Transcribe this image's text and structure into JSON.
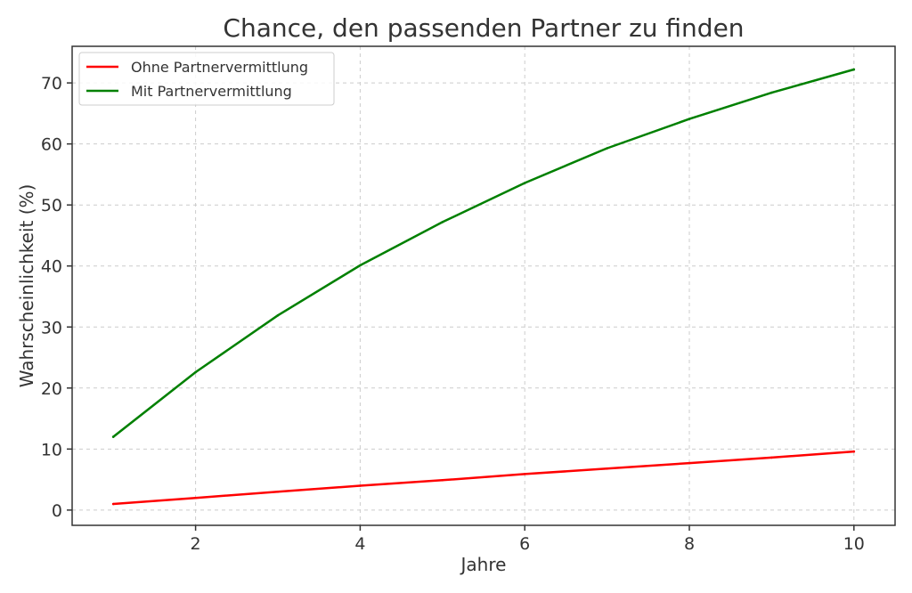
{
  "chart_data": {
    "type": "line",
    "title": "Chance, den passenden Partner zu finden",
    "xlabel": "Jahre",
    "ylabel": "Wahrscheinlichkeit (%)",
    "xlim": [
      0.5,
      10.5
    ],
    "ylim": [
      -2.5,
      76
    ],
    "x_ticks": [
      2,
      4,
      6,
      8,
      10
    ],
    "y_ticks": [
      0,
      10,
      20,
      30,
      40,
      50,
      60,
      70
    ],
    "grid": true,
    "legend_position": "top-left",
    "x": [
      1,
      2,
      3,
      4,
      5,
      6,
      7,
      8,
      9,
      10
    ],
    "series": [
      {
        "name": "Ohne Partnervermittlung",
        "color": "#ff0000",
        "values": [
          1.0,
          2.0,
          3.0,
          4.0,
          4.9,
          5.9,
          6.8,
          7.7,
          8.6,
          9.6
        ]
      },
      {
        "name": "Mit Partnervermittlung",
        "color": "#008000",
        "values": [
          12.0,
          22.6,
          31.9,
          40.1,
          47.2,
          53.6,
          59.3,
          64.1,
          68.4,
          72.2
        ]
      }
    ]
  }
}
